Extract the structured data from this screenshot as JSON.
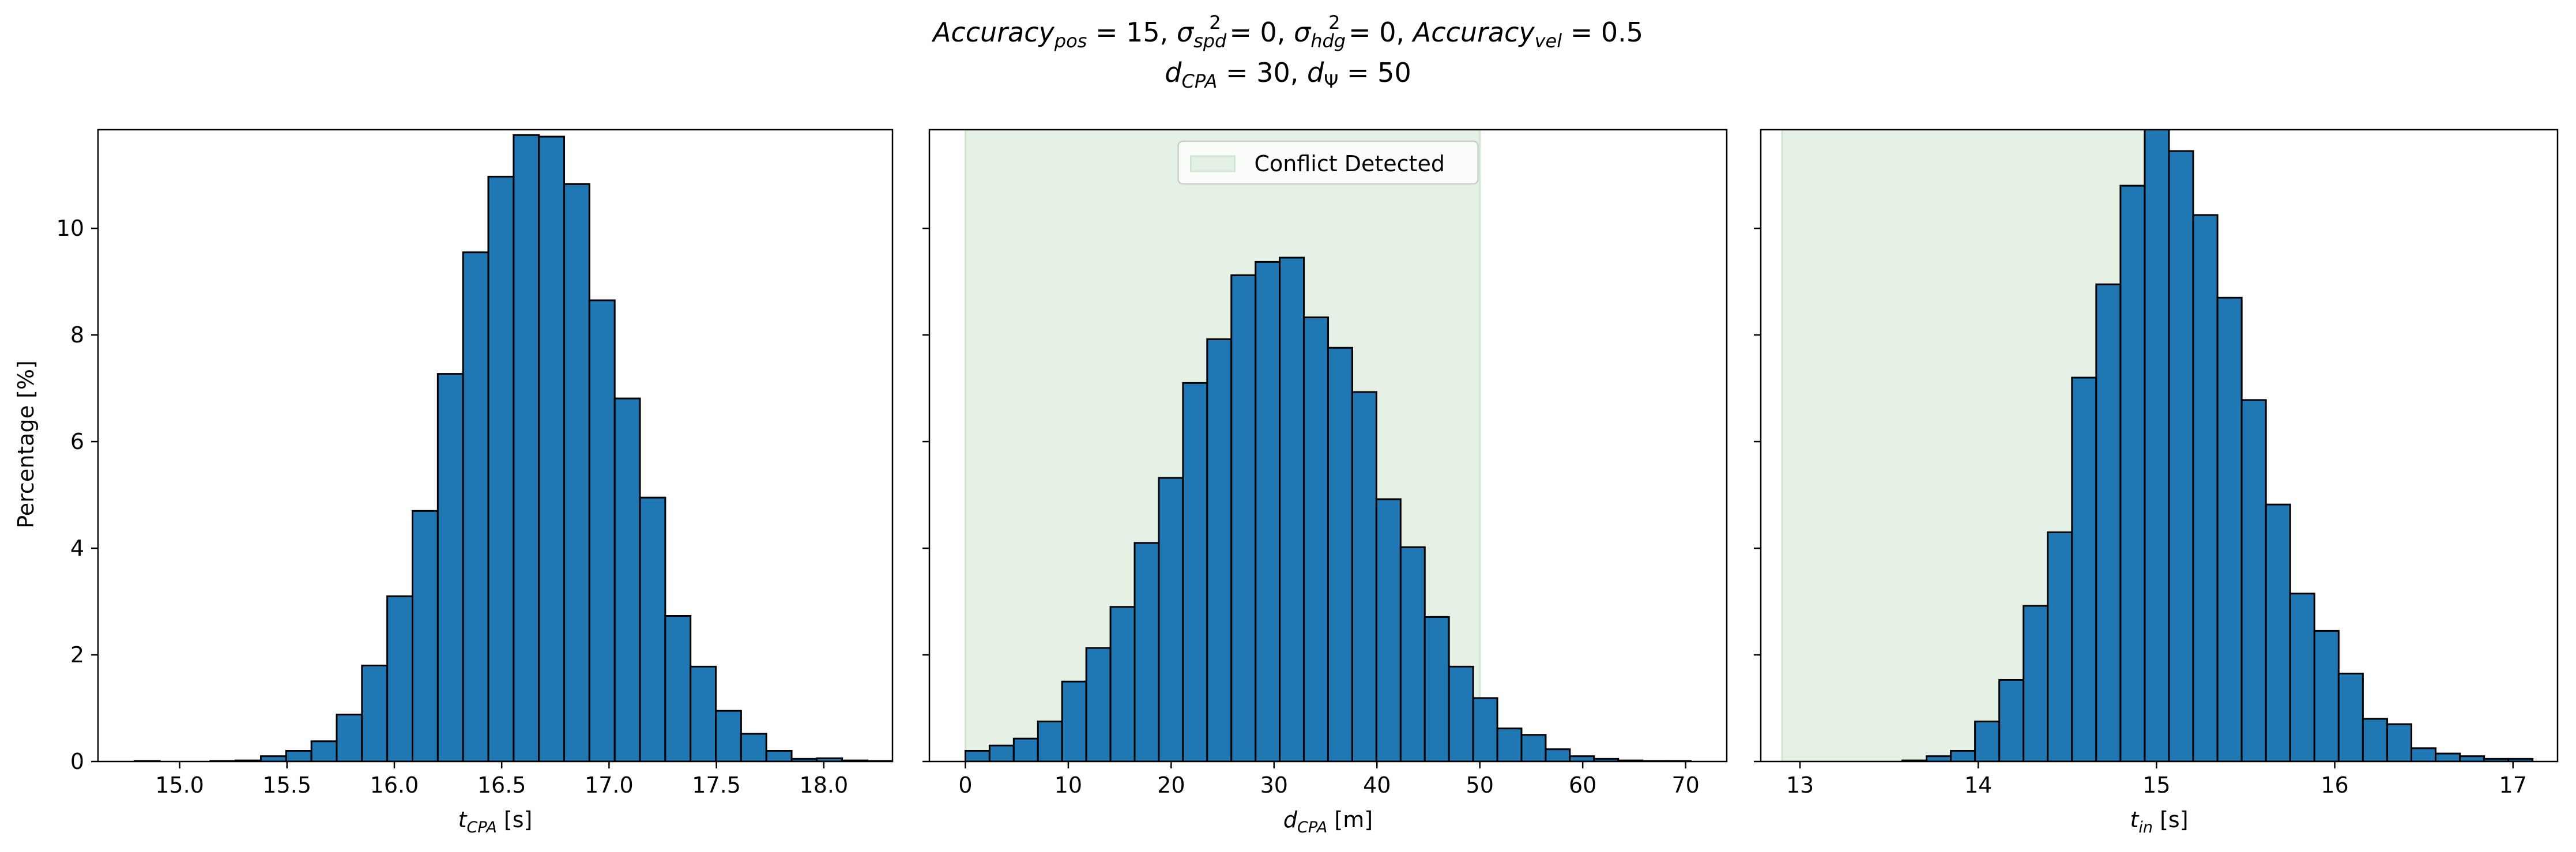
{
  "suptitle": {
    "line1_parts": [
      {
        "t": "Accuracy",
        "style": "italic"
      },
      {
        "t": "pos",
        "style": "italic-sub"
      },
      {
        "t": " = 15, ",
        "style": "normal"
      },
      {
        "t": "σ",
        "style": "italic"
      },
      {
        "t": "spd",
        "style": "italic-sub"
      },
      {
        "t": "2",
        "style": "sup"
      },
      {
        "t": " = 0, ",
        "style": "normal"
      },
      {
        "t": "σ",
        "style": "italic"
      },
      {
        "t": "hdg",
        "style": "italic-sub"
      },
      {
        "t": "2",
        "style": "sup"
      },
      {
        "t": " = 0, ",
        "style": "normal"
      },
      {
        "t": "Accuracy",
        "style": "italic"
      },
      {
        "t": "vel",
        "style": "italic-sub"
      },
      {
        "t": " = 0.5",
        "style": "normal"
      }
    ],
    "line2_parts": [
      {
        "t": "d",
        "style": "italic"
      },
      {
        "t": "CPA",
        "style": "italic-sub"
      },
      {
        "t": " = 30, ",
        "style": "normal"
      },
      {
        "t": "d",
        "style": "italic"
      },
      {
        "t": "Ψ",
        "style": "sub"
      },
      {
        "t": " = 50",
        "style": "normal"
      }
    ]
  },
  "ylabel": "Percentage [%]",
  "colors": {
    "bar": "#1f77b4",
    "edge": "#000000",
    "shade": "#e5f1e5",
    "shade_edge": "#cfe6cf"
  },
  "chart_data": [
    {
      "type": "bar",
      "name": "tCPA histogram",
      "xlabel_main": "t",
      "xlabel_sub": "CPA",
      "xlabel_unit": " [s]",
      "xlim": [
        14.62,
        18.32
      ],
      "ylim": [
        0,
        11.85
      ],
      "xticks": [
        15.0,
        15.5,
        16.0,
        16.5,
        17.0,
        17.5,
        18.0
      ],
      "xtick_labels": [
        "15.0",
        "15.5",
        "16.0",
        "16.5",
        "17.0",
        "17.5",
        "18.0"
      ],
      "yticks": [
        0,
        2,
        4,
        6,
        8,
        10
      ],
      "ytick_labels": [
        "0",
        "2",
        "4",
        "6",
        "8",
        "10"
      ],
      "bin_start": 14.79,
      "bin_width": 0.1177,
      "values": [
        0.01,
        0.0,
        0.0,
        0.01,
        0.02,
        0.1,
        0.2,
        0.38,
        0.88,
        1.8,
        3.1,
        4.7,
        7.27,
        9.55,
        10.97,
        11.75,
        11.72,
        10.83,
        8.65,
        6.81,
        4.95,
        2.73,
        1.78,
        0.95,
        0.52,
        0.2,
        0.05,
        0.06,
        0.02,
        0.01
      ],
      "shade": null,
      "legend": null
    },
    {
      "type": "bar",
      "name": "dCPA histogram",
      "xlabel_main": "d",
      "xlabel_sub": "CPA",
      "xlabel_unit": " [m]",
      "xlim": [
        -3.5,
        74.0
      ],
      "ylim": [
        0,
        11.85
      ],
      "xticks": [
        0,
        10,
        20,
        30,
        40,
        50,
        60,
        70
      ],
      "xtick_labels": [
        "0",
        "10",
        "20",
        "30",
        "40",
        "50",
        "60",
        "70"
      ],
      "yticks": [
        0,
        2,
        4,
        6,
        8,
        10
      ],
      "ytick_labels": [
        "",
        "",
        "",
        "",
        "",
        ""
      ],
      "bin_start": 0.0,
      "bin_width": 2.35,
      "values": [
        0.2,
        0.3,
        0.43,
        0.75,
        1.5,
        2.13,
        2.9,
        4.1,
        5.32,
        7.1,
        7.92,
        9.12,
        9.37,
        9.45,
        8.33,
        7.76,
        6.93,
        4.92,
        4.02,
        2.71,
        1.78,
        1.19,
        0.62,
        0.5,
        0.23,
        0.1,
        0.05,
        0.02,
        0.01,
        0.01
      ],
      "shade": [
        0,
        50
      ],
      "legend": {
        "label": "Conflict Detected",
        "loc": "upper center"
      }
    },
    {
      "type": "bar",
      "name": "tin histogram",
      "xlabel_main": "t",
      "xlabel_sub": "in",
      "xlabel_unit": " [s]",
      "xlim": [
        12.78,
        17.25
      ],
      "ylim": [
        0,
        11.85
      ],
      "xticks": [
        13,
        14,
        15,
        16,
        17
      ],
      "xtick_labels": [
        "13",
        "14",
        "15",
        "16",
        "17"
      ],
      "yticks": [
        0,
        2,
        4,
        6,
        8,
        10
      ],
      "ytick_labels": [
        "",
        "",
        "",
        "",
        "",
        ""
      ],
      "bin_start": 13.03,
      "bin_width": 0.136,
      "values": [
        0.0,
        0.0,
        0.0,
        0.0,
        0.02,
        0.1,
        0.2,
        0.75,
        1.53,
        2.92,
        4.3,
        7.2,
        8.95,
        10.8,
        11.9,
        11.45,
        10.25,
        8.7,
        6.78,
        4.82,
        3.15,
        2.45,
        1.65,
        0.8,
        0.7,
        0.25,
        0.15,
        0.1,
        0.05,
        0.05
      ],
      "shade": [
        12.9,
        15.0
      ],
      "legend": null
    }
  ]
}
